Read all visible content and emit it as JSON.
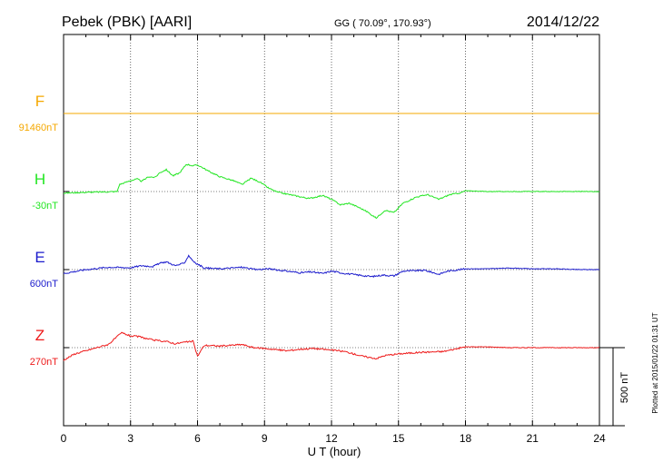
{
  "chart_data": {
    "type": "line",
    "title": "Pebek (PBK)  [AARI]",
    "coords": "GG ( 70.09°, 170.93°)",
    "date": "2014/12/22",
    "xlabel": "U T (hour)",
    "xlim": [
      0,
      24
    ],
    "xticks": [
      "0",
      "3",
      "6",
      "9",
      "12",
      "15",
      "18",
      "21",
      "24"
    ],
    "scale_bar": {
      "label": "500 nT",
      "value_nT": 500
    },
    "plotted_note": "Plotted at 2015/01/22 01:31  UT",
    "series": [
      {
        "name": "F",
        "baseline": "91460nT",
        "color": "#f5a800",
        "offset_nT": 1000,
        "points": [
          [
            0,
            0
          ],
          [
            24,
            0
          ]
        ]
      },
      {
        "name": "H",
        "baseline": "-30nT",
        "color": "#22e622",
        "offset_nT": 500,
        "points": [
          [
            0,
            -10
          ],
          [
            1,
            -5
          ],
          [
            2,
            -2
          ],
          [
            2.4,
            0
          ],
          [
            2.5,
            45
          ],
          [
            3,
            70
          ],
          [
            3.3,
            80
          ],
          [
            3.5,
            65
          ],
          [
            3.8,
            95
          ],
          [
            4.1,
            90
          ],
          [
            4.3,
            120
          ],
          [
            4.6,
            140
          ],
          [
            4.9,
            100
          ],
          [
            5.2,
            120
          ],
          [
            5.5,
            175
          ],
          [
            5.8,
            165
          ],
          [
            6.0,
            170
          ],
          [
            6.2,
            155
          ],
          [
            6.5,
            130
          ],
          [
            7.0,
            95
          ],
          [
            7.6,
            70
          ],
          [
            8.0,
            45
          ],
          [
            8.4,
            85
          ],
          [
            8.8,
            60
          ],
          [
            9.2,
            20
          ],
          [
            9.6,
            -5
          ],
          [
            10.3,
            -25
          ],
          [
            11.0,
            -45
          ],
          [
            11.6,
            -25
          ],
          [
            12.0,
            -50
          ],
          [
            12.4,
            -85
          ],
          [
            12.8,
            -75
          ],
          [
            13.2,
            -100
          ],
          [
            13.6,
            -130
          ],
          [
            14.0,
            -170
          ],
          [
            14.4,
            -120
          ],
          [
            14.8,
            -135
          ],
          [
            15.2,
            -75
          ],
          [
            15.8,
            -35
          ],
          [
            16.3,
            -20
          ],
          [
            16.8,
            -50
          ],
          [
            17.3,
            -20
          ],
          [
            17.8,
            -8
          ],
          [
            18,
            5
          ],
          [
            19,
            0
          ],
          [
            20,
            0
          ],
          [
            21,
            0
          ],
          [
            22,
            0
          ],
          [
            23,
            0
          ],
          [
            24,
            0
          ]
        ]
      },
      {
        "name": "E",
        "baseline": "600nT",
        "color": "#1a1acc",
        "offset_nT": 0,
        "points": [
          [
            0,
            -25
          ],
          [
            1,
            0
          ],
          [
            2,
            15
          ],
          [
            3,
            12
          ],
          [
            3.5,
            25
          ],
          [
            4,
            20
          ],
          [
            4.3,
            40
          ],
          [
            4.6,
            50
          ],
          [
            5,
            25
          ],
          [
            5.4,
            40
          ],
          [
            5.6,
            90
          ],
          [
            5.9,
            40
          ],
          [
            6.0,
            35
          ],
          [
            6.3,
            10
          ],
          [
            7.0,
            5
          ],
          [
            8.0,
            15
          ],
          [
            8.6,
            0
          ],
          [
            9.2,
            5
          ],
          [
            10.0,
            -10
          ],
          [
            10.6,
            -20
          ],
          [
            11.1,
            -15
          ],
          [
            11.6,
            -25
          ],
          [
            12.0,
            -10
          ],
          [
            12.6,
            -25
          ],
          [
            13.2,
            -35
          ],
          [
            13.8,
            -45
          ],
          [
            14.3,
            -35
          ],
          [
            14.8,
            -40
          ],
          [
            15.2,
            -10
          ],
          [
            16.2,
            -5
          ],
          [
            16.8,
            -30
          ],
          [
            17.2,
            -10
          ],
          [
            18,
            5
          ],
          [
            19,
            5
          ],
          [
            20,
            10
          ],
          [
            21,
            5
          ],
          [
            22,
            5
          ],
          [
            23,
            0
          ],
          [
            24,
            0
          ]
        ]
      },
      {
        "name": "Z",
        "baseline": "270nT",
        "color": "#ee1a1a",
        "offset_nT": -500,
        "points": [
          [
            0,
            -80
          ],
          [
            0.5,
            -40
          ],
          [
            1,
            -20
          ],
          [
            1.6,
            5
          ],
          [
            2,
            20
          ],
          [
            2.6,
            95
          ],
          [
            3,
            75
          ],
          [
            3.4,
            70
          ],
          [
            3.8,
            55
          ],
          [
            4.2,
            45
          ],
          [
            4.6,
            40
          ],
          [
            5,
            25
          ],
          [
            5.4,
            35
          ],
          [
            5.8,
            40
          ],
          [
            6.0,
            -55
          ],
          [
            6.3,
            15
          ],
          [
            7.0,
            10
          ],
          [
            8.0,
            20
          ],
          [
            8.5,
            0
          ],
          [
            9.0,
            -5
          ],
          [
            10.0,
            -20
          ],
          [
            10.6,
            -10
          ],
          [
            11.2,
            -5
          ],
          [
            12.0,
            -15
          ],
          [
            12.6,
            -25
          ],
          [
            13.4,
            -55
          ],
          [
            14.0,
            -70
          ],
          [
            14.4,
            -50
          ],
          [
            15.0,
            -40
          ],
          [
            16.0,
            -30
          ],
          [
            17.0,
            -25
          ],
          [
            18,
            5
          ],
          [
            19,
            5
          ],
          [
            20,
            0
          ],
          [
            21,
            0
          ],
          [
            22,
            0
          ],
          [
            23,
            0
          ],
          [
            24,
            0
          ]
        ]
      }
    ]
  }
}
